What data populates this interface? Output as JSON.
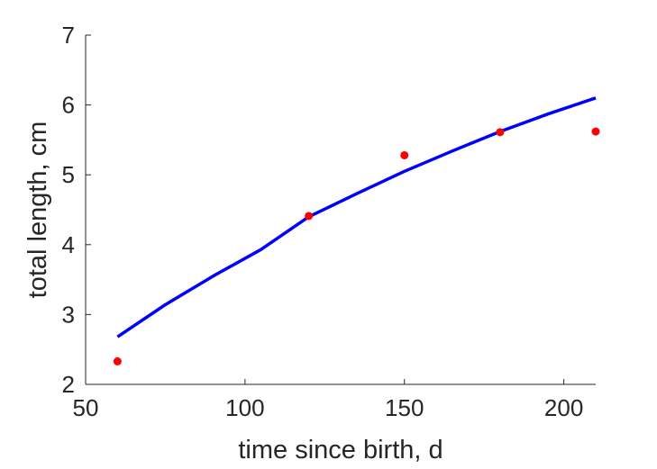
{
  "chart_data": {
    "type": "scatter",
    "title": "",
    "xlabel": "time since birth, d",
    "ylabel": "total length, cm",
    "xlim": [
      50,
      210
    ],
    "ylim": [
      2,
      7
    ],
    "xticks": [
      50,
      100,
      150,
      200
    ],
    "yticks": [
      2,
      3,
      4,
      5,
      6,
      7
    ],
    "xtick_labels": [
      "50",
      "100",
      "150",
      "200"
    ],
    "ytick_labels": [
      "2",
      "3",
      "4",
      "5",
      "6",
      "7"
    ],
    "grid": false,
    "legend": "none",
    "series": [
      {
        "kind": "scatter",
        "color": "#ff0000",
        "x": [
          60,
          120,
          150,
          180,
          210
        ],
        "y": [
          2.33,
          4.41,
          5.28,
          5.61,
          5.62
        ]
      },
      {
        "kind": "line",
        "color": "#0000ff",
        "x": [
          60,
          75,
          90,
          105,
          120,
          135,
          150,
          165,
          180,
          195,
          210
        ],
        "y": [
          2.68,
          3.14,
          3.55,
          3.93,
          4.4,
          4.73,
          5.05,
          5.34,
          5.62,
          5.87,
          6.1
        ]
      }
    ]
  }
}
